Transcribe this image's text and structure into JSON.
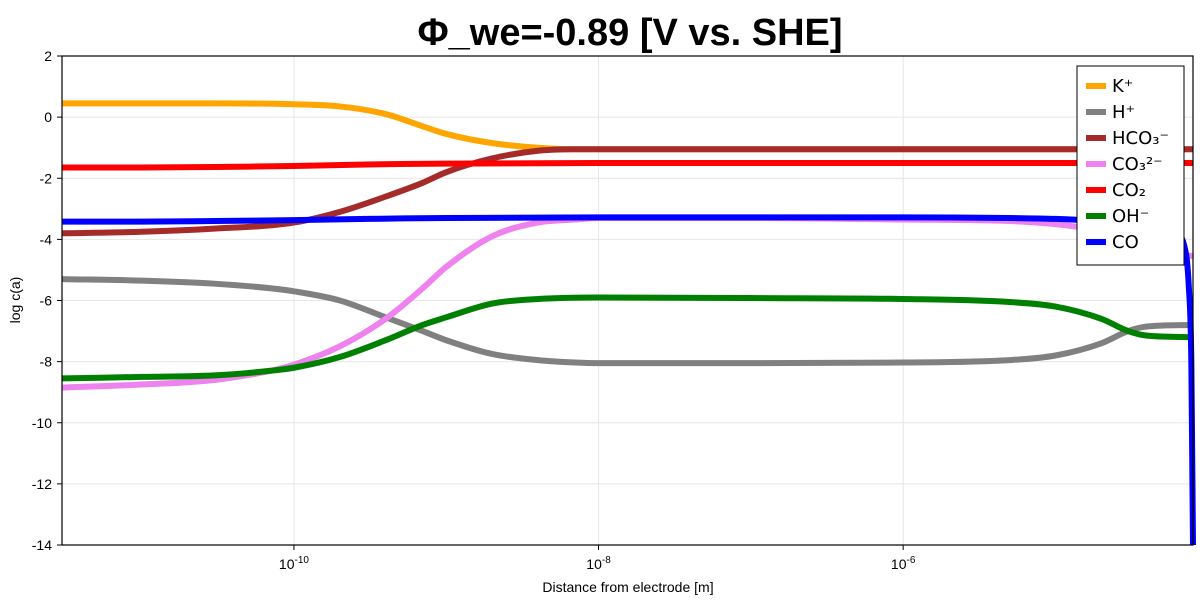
{
  "chart_data": {
    "type": "line",
    "title": "Φ_we=-0.89 [V vs. SHE]",
    "xlabel": "Distance from electrode [m]",
    "ylabel": "log c(a)",
    "xscale": "log",
    "xlim": [
      3e-12,
      8e-05
    ],
    "ylim": [
      -14,
      2
    ],
    "yticks": [
      2,
      0,
      -2,
      -4,
      -6,
      -8,
      -10,
      -12,
      -14
    ],
    "xticks": [
      {
        "value": 1e-10,
        "base": "10",
        "exp": "-10"
      },
      {
        "value": 1e-08,
        "base": "10",
        "exp": "-8"
      },
      {
        "value": 1e-06,
        "base": "10",
        "exp": "-6"
      }
    ],
    "grid": true,
    "legend_position": "top-right",
    "series": [
      {
        "name": "K⁺",
        "color": "#FFA500",
        "points": [
          [
            3e-12,
            0.45
          ],
          [
            1e-11,
            0.45
          ],
          [
            3e-11,
            0.45
          ],
          [
            1e-10,
            0.42
          ],
          [
            2e-10,
            0.35
          ],
          [
            4e-10,
            0.1
          ],
          [
            7e-10,
            -0.3
          ],
          [
            1e-09,
            -0.55
          ],
          [
            2e-09,
            -0.85
          ],
          [
            4e-09,
            -1.0
          ],
          [
            7e-09,
            -1.05
          ],
          [
            1e-08,
            -1.05
          ],
          [
            1e-07,
            -1.05
          ],
          [
            1e-06,
            -1.05
          ],
          [
            1e-05,
            -1.05
          ],
          [
            8e-05,
            -1.05
          ]
        ]
      },
      {
        "name": "H⁺",
        "color": "#808080",
        "points": [
          [
            3e-12,
            -5.3
          ],
          [
            1e-11,
            -5.35
          ],
          [
            3e-11,
            -5.45
          ],
          [
            7e-11,
            -5.6
          ],
          [
            1e-10,
            -5.7
          ],
          [
            2e-10,
            -6.0
          ],
          [
            4e-10,
            -6.55
          ],
          [
            7e-10,
            -7.0
          ],
          [
            1e-09,
            -7.3
          ],
          [
            2e-09,
            -7.75
          ],
          [
            4e-09,
            -7.95
          ],
          [
            7e-09,
            -8.03
          ],
          [
            1e-08,
            -8.05
          ],
          [
            1e-07,
            -8.05
          ],
          [
            1e-06,
            -8.03
          ],
          [
            5e-06,
            -7.95
          ],
          [
            1e-05,
            -7.8
          ],
          [
            2e-05,
            -7.4
          ],
          [
            3e-05,
            -7.0
          ],
          [
            4e-05,
            -6.85
          ],
          [
            8e-05,
            -6.8
          ]
        ]
      },
      {
        "name": "HCO₃⁻",
        "color": "#A52A2A",
        "points": [
          [
            3e-12,
            -3.8
          ],
          [
            1e-11,
            -3.75
          ],
          [
            3e-11,
            -3.65
          ],
          [
            1e-10,
            -3.45
          ],
          [
            2e-10,
            -3.1
          ],
          [
            4e-10,
            -2.6
          ],
          [
            7e-10,
            -2.15
          ],
          [
            1e-09,
            -1.8
          ],
          [
            2e-09,
            -1.35
          ],
          [
            4e-09,
            -1.1
          ],
          [
            7e-09,
            -1.05
          ],
          [
            1e-08,
            -1.05
          ],
          [
            1e-07,
            -1.05
          ],
          [
            1e-06,
            -1.05
          ],
          [
            1e-05,
            -1.05
          ],
          [
            8e-05,
            -1.05
          ]
        ]
      },
      {
        "name": "CO₃²⁻",
        "color": "#EE82EE",
        "points": [
          [
            3e-12,
            -8.85
          ],
          [
            1e-11,
            -8.75
          ],
          [
            3e-11,
            -8.6
          ],
          [
            7e-11,
            -8.3
          ],
          [
            1e-10,
            -8.1
          ],
          [
            2e-10,
            -7.5
          ],
          [
            4e-10,
            -6.6
          ],
          [
            7e-10,
            -5.6
          ],
          [
            1e-09,
            -4.9
          ],
          [
            2e-09,
            -3.9
          ],
          [
            4e-09,
            -3.45
          ],
          [
            7e-09,
            -3.35
          ],
          [
            1e-08,
            -3.3
          ],
          [
            1e-07,
            -3.3
          ],
          [
            1e-06,
            -3.35
          ],
          [
            5e-06,
            -3.4
          ],
          [
            1e-05,
            -3.5
          ],
          [
            2e-05,
            -3.75
          ],
          [
            3e-05,
            -4.1
          ],
          [
            5e-05,
            -4.4
          ],
          [
            8e-05,
            -4.55
          ]
        ]
      },
      {
        "name": "CO₂",
        "color": "#FF0000",
        "points": [
          [
            3e-12,
            -1.65
          ],
          [
            1e-11,
            -1.65
          ],
          [
            3e-11,
            -1.63
          ],
          [
            1e-10,
            -1.6
          ],
          [
            3e-10,
            -1.55
          ],
          [
            1e-09,
            -1.52
          ],
          [
            1e-08,
            -1.5
          ],
          [
            1e-07,
            -1.5
          ],
          [
            1e-06,
            -1.5
          ],
          [
            1e-05,
            -1.5
          ],
          [
            8e-05,
            -1.5
          ]
        ]
      },
      {
        "name": "OH⁻",
        "color": "#008000",
        "points": [
          [
            3e-12,
            -8.55
          ],
          [
            1e-11,
            -8.5
          ],
          [
            3e-11,
            -8.45
          ],
          [
            7e-11,
            -8.3
          ],
          [
            1e-10,
            -8.2
          ],
          [
            2e-10,
            -7.85
          ],
          [
            4e-10,
            -7.3
          ],
          [
            7e-10,
            -6.8
          ],
          [
            1e-09,
            -6.55
          ],
          [
            2e-09,
            -6.1
          ],
          [
            4e-09,
            -5.95
          ],
          [
            1e-08,
            -5.9
          ],
          [
            1e-07,
            -5.92
          ],
          [
            1e-06,
            -5.95
          ],
          [
            5e-06,
            -6.05
          ],
          [
            1e-05,
            -6.2
          ],
          [
            2e-05,
            -6.6
          ],
          [
            3e-05,
            -7.0
          ],
          [
            4e-05,
            -7.15
          ],
          [
            8e-05,
            -7.2
          ]
        ]
      },
      {
        "name": "CO",
        "color": "#0000FF",
        "points": [
          [
            3e-12,
            -3.42
          ],
          [
            1e-11,
            -3.42
          ],
          [
            3e-11,
            -3.4
          ],
          [
            1e-10,
            -3.37
          ],
          [
            3e-10,
            -3.33
          ],
          [
            1e-09,
            -3.3
          ],
          [
            1e-08,
            -3.28
          ],
          [
            1e-07,
            -3.28
          ],
          [
            1e-06,
            -3.28
          ],
          [
            5e-06,
            -3.3
          ],
          [
            1e-05,
            -3.33
          ],
          [
            2e-05,
            -3.4
          ],
          [
            4e-05,
            -3.5
          ],
          [
            6e-05,
            -3.75
          ],
          [
            7e-05,
            -4.2
          ],
          [
            7.5e-05,
            -5.5
          ],
          [
            7.8e-05,
            -8
          ],
          [
            7.9e-05,
            -11
          ],
          [
            8e-05,
            -14
          ]
        ]
      }
    ]
  }
}
